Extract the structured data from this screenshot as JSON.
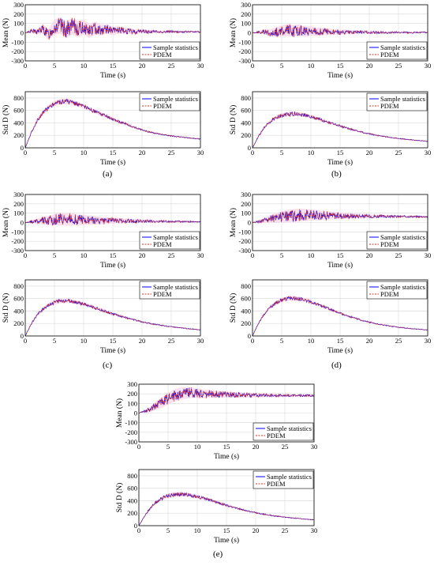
{
  "panels": [
    {
      "label": "(a)"
    },
    {
      "label": "(b)"
    },
    {
      "label": "(c)"
    },
    {
      "label": "(d)"
    },
    {
      "label": "(e)"
    }
  ],
  "chart_data": [
    {
      "panel": "(a)",
      "type": "line",
      "xlabel": "Time (s)",
      "ylabel": "Mean (N)",
      "xlim": [
        0,
        30
      ],
      "ylim": [
        -300,
        300
      ],
      "xticks": [
        0,
        5,
        10,
        15,
        20,
        25,
        30
      ],
      "yticks": [
        -300,
        -200,
        -100,
        0,
        100,
        200,
        300
      ],
      "grid": true,
      "legend": "bottom-right",
      "series": [
        {
          "name": "Sample statistics",
          "color": "#0000ff"
        },
        {
          "name": "PDEM",
          "color": "#e0301e",
          "dash": true
        }
      ],
      "x": [
        0,
        1,
        2,
        3,
        4,
        5,
        6,
        7,
        8,
        9,
        10,
        11,
        12,
        13,
        14,
        15,
        16,
        17,
        18,
        19,
        20,
        21,
        22,
        23,
        24,
        25,
        26,
        27,
        28,
        29,
        30
      ],
      "values": [
        0,
        20,
        10,
        40,
        -20,
        60,
        80,
        30,
        70,
        40,
        60,
        20,
        50,
        30,
        40,
        20,
        30,
        20,
        15,
        10,
        20,
        10,
        15,
        10,
        10,
        15,
        10,
        10,
        12,
        10,
        10
      ],
      "amplitude": [
        0,
        20,
        30,
        50,
        60,
        80,
        90,
        90,
        90,
        85,
        80,
        75,
        70,
        60,
        50,
        45,
        40,
        35,
        30,
        25,
        20,
        18,
        15,
        14,
        12,
        12,
        10,
        10,
        10,
        10,
        10
      ]
    },
    {
      "panel": "(a)",
      "type": "line",
      "xlabel": "Time (s)",
      "ylabel": "Std D (N)",
      "xlim": [
        0,
        30
      ],
      "ylim": [
        0,
        900
      ],
      "xticks": [
        0,
        5,
        10,
        15,
        20,
        25,
        30
      ],
      "yticks": [
        0,
        200,
        400,
        600,
        800
      ],
      "grid": true,
      "legend": "top-right",
      "series": [
        {
          "name": "Sample statistics",
          "color": "#0000ff"
        },
        {
          "name": "PDEM",
          "color": "#e0301e",
          "dash": true
        }
      ],
      "x": [
        0,
        1,
        2,
        3,
        4,
        5,
        6,
        7,
        8,
        9,
        10,
        11,
        12,
        13,
        14,
        15,
        16,
        17,
        18,
        19,
        20,
        21,
        22,
        23,
        24,
        25,
        26,
        27,
        28,
        29,
        30
      ],
      "values": [
        0,
        240,
        430,
        560,
        650,
        710,
        740,
        745,
        730,
        700,
        660,
        620,
        580,
        540,
        500,
        460,
        420,
        390,
        350,
        320,
        290,
        260,
        240,
        220,
        205,
        190,
        180,
        170,
        160,
        150,
        140
      ],
      "amplitude": [
        0,
        15,
        25,
        35,
        40,
        45,
        45,
        45,
        40,
        40,
        35,
        35,
        30,
        30,
        25,
        25,
        20,
        20,
        15,
        15,
        15,
        12,
        12,
        10,
        10,
        10,
        8,
        8,
        8,
        8,
        8
      ]
    },
    {
      "panel": "(b)",
      "type": "line",
      "xlabel": "Time (s)",
      "ylabel": "Mean (N)",
      "xlim": [
        0,
        30
      ],
      "ylim": [
        -300,
        300
      ],
      "xticks": [
        0,
        5,
        10,
        15,
        20,
        25,
        30
      ],
      "yticks": [
        -300,
        -200,
        -100,
        0,
        100,
        200,
        300
      ],
      "grid": true,
      "legend": "bottom-right",
      "series": [
        {
          "name": "Sample statistics",
          "color": "#0000ff"
        },
        {
          "name": "PDEM",
          "color": "#e0301e",
          "dash": true
        }
      ],
      "x": [
        0,
        1,
        2,
        3,
        4,
        5,
        6,
        7,
        8,
        9,
        10,
        11,
        12,
        13,
        14,
        15,
        16,
        17,
        18,
        19,
        20,
        21,
        22,
        23,
        24,
        25,
        26,
        27,
        28,
        29,
        30
      ],
      "values": [
        0,
        5,
        10,
        0,
        10,
        20,
        30,
        20,
        30,
        10,
        20,
        10,
        15,
        10,
        10,
        5,
        10,
        5,
        5,
        10,
        5,
        5,
        5,
        0,
        5,
        5,
        5,
        0,
        5,
        5,
        5
      ],
      "amplitude": [
        0,
        15,
        25,
        40,
        50,
        60,
        65,
        65,
        60,
        55,
        50,
        45,
        40,
        35,
        30,
        28,
        25,
        22,
        20,
        18,
        16,
        14,
        12,
        12,
        10,
        10,
        10,
        8,
        8,
        8,
        8
      ]
    },
    {
      "panel": "(b)",
      "type": "line",
      "xlabel": "Time (s)",
      "ylabel": "Std D (N)",
      "xlim": [
        0,
        30
      ],
      "ylim": [
        0,
        900
      ],
      "xticks": [
        0,
        5,
        10,
        15,
        20,
        25,
        30
      ],
      "yticks": [
        0,
        200,
        400,
        600,
        800
      ],
      "grid": true,
      "legend": "top-right",
      "series": [
        {
          "name": "Sample statistics",
          "color": "#0000ff"
        },
        {
          "name": "PDEM",
          "color": "#e0301e",
          "dash": true
        }
      ],
      "x": [
        0,
        1,
        2,
        3,
        4,
        5,
        6,
        7,
        8,
        9,
        10,
        11,
        12,
        13,
        14,
        15,
        16,
        17,
        18,
        19,
        20,
        21,
        22,
        23,
        24,
        25,
        26,
        27,
        28,
        29,
        30
      ],
      "values": [
        0,
        180,
        320,
        420,
        480,
        520,
        540,
        545,
        540,
        520,
        500,
        470,
        440,
        410,
        380,
        350,
        320,
        295,
        270,
        245,
        225,
        205,
        190,
        175,
        160,
        150,
        140,
        130,
        120,
        112,
        105
      ],
      "amplitude": [
        0,
        12,
        20,
        28,
        32,
        35,
        35,
        35,
        32,
        30,
        28,
        26,
        24,
        22,
        20,
        18,
        16,
        15,
        14,
        12,
        12,
        10,
        10,
        10,
        8,
        8,
        8,
        8,
        6,
        6,
        6
      ]
    },
    {
      "panel": "(c)",
      "type": "line",
      "xlabel": "Time (s)",
      "ylabel": "Mean (N)",
      "xlim": [
        0,
        30
      ],
      "ylim": [
        -300,
        300
      ],
      "xticks": [
        0,
        5,
        10,
        15,
        20,
        25,
        30
      ],
      "yticks": [
        -300,
        -200,
        -100,
        0,
        100,
        200,
        300
      ],
      "grid": true,
      "legend": "bottom-right",
      "series": [
        {
          "name": "Sample statistics",
          "color": "#0000ff"
        },
        {
          "name": "PDEM",
          "color": "#e0301e",
          "dash": true
        }
      ],
      "x": [
        0,
        1,
        2,
        3,
        4,
        5,
        6,
        7,
        8,
        9,
        10,
        11,
        12,
        13,
        14,
        15,
        16,
        17,
        18,
        19,
        20,
        21,
        22,
        23,
        24,
        25,
        26,
        27,
        28,
        29,
        30
      ],
      "values": [
        0,
        10,
        15,
        20,
        20,
        30,
        35,
        30,
        35,
        25,
        30,
        25,
        25,
        20,
        20,
        20,
        20,
        18,
        18,
        15,
        15,
        15,
        12,
        12,
        12,
        10,
        10,
        10,
        10,
        10,
        10
      ],
      "amplitude": [
        0,
        15,
        25,
        40,
        50,
        60,
        65,
        65,
        65,
        60,
        55,
        50,
        45,
        40,
        35,
        32,
        28,
        25,
        22,
        20,
        18,
        16,
        14,
        12,
        12,
        10,
        10,
        10,
        8,
        8,
        8
      ]
    },
    {
      "panel": "(c)",
      "type": "line",
      "xlabel": "Time (s)",
      "ylabel": "Std D (N)",
      "xlim": [
        0,
        30
      ],
      "ylim": [
        0,
        900
      ],
      "xticks": [
        0,
        5,
        10,
        15,
        20,
        25,
        30
      ],
      "yticks": [
        0,
        200,
        400,
        600,
        800
      ],
      "grid": true,
      "legend": "top-right",
      "series": [
        {
          "name": "Sample statistics",
          "color": "#0000ff"
        },
        {
          "name": "PDEM",
          "color": "#e0301e",
          "dash": true
        }
      ],
      "x": [
        0,
        1,
        2,
        3,
        4,
        5,
        6,
        7,
        8,
        9,
        10,
        11,
        12,
        13,
        14,
        15,
        16,
        17,
        18,
        19,
        20,
        21,
        22,
        23,
        24,
        25,
        26,
        27,
        28,
        29,
        30
      ],
      "values": [
        0,
        190,
        330,
        430,
        500,
        540,
        560,
        565,
        555,
        535,
        510,
        480,
        450,
        420,
        385,
        355,
        325,
        300,
        275,
        250,
        228,
        208,
        190,
        175,
        160,
        148,
        136,
        125,
        115,
        108,
        100
      ],
      "amplitude": [
        0,
        12,
        20,
        28,
        32,
        35,
        35,
        35,
        32,
        30,
        28,
        26,
        24,
        22,
        20,
        18,
        16,
        15,
        14,
        12,
        12,
        10,
        10,
        10,
        8,
        8,
        8,
        8,
        6,
        6,
        6
      ]
    },
    {
      "panel": "(d)",
      "type": "line",
      "xlabel": "Time (s)",
      "ylabel": "Mean (N)",
      "xlim": [
        0,
        30
      ],
      "ylim": [
        -300,
        300
      ],
      "xticks": [
        0,
        5,
        10,
        15,
        20,
        25,
        30
      ],
      "yticks": [
        -300,
        -200,
        -100,
        0,
        100,
        200,
        300
      ],
      "grid": true,
      "legend": "bottom-right",
      "series": [
        {
          "name": "Sample statistics",
          "color": "#0000ff"
        },
        {
          "name": "PDEM",
          "color": "#e0301e",
          "dash": true
        }
      ],
      "x": [
        0,
        1,
        2,
        3,
        4,
        5,
        6,
        7,
        8,
        9,
        10,
        11,
        12,
        13,
        14,
        15,
        16,
        17,
        18,
        19,
        20,
        21,
        22,
        23,
        24,
        25,
        26,
        27,
        28,
        29,
        30
      ],
      "values": [
        0,
        10,
        25,
        40,
        50,
        60,
        70,
        75,
        80,
        80,
        80,
        80,
        78,
        76,
        74,
        72,
        70,
        70,
        70,
        68,
        68,
        66,
        66,
        65,
        65,
        64,
        64,
        64,
        63,
        63,
        62
      ],
      "amplitude": [
        0,
        15,
        25,
        40,
        50,
        60,
        65,
        70,
        70,
        65,
        60,
        55,
        50,
        45,
        40,
        35,
        30,
        28,
        25,
        22,
        20,
        18,
        16,
        15,
        14,
        12,
        12,
        10,
        10,
        10,
        10
      ]
    },
    {
      "panel": "(d)",
      "type": "line",
      "xlabel": "Time (s)",
      "ylabel": "Std D (N)",
      "xlim": [
        0,
        30
      ],
      "ylim": [
        0,
        900
      ],
      "xticks": [
        0,
        5,
        10,
        15,
        20,
        25,
        30
      ],
      "yticks": [
        0,
        200,
        400,
        600,
        800
      ],
      "grid": true,
      "legend": "top-right",
      "series": [
        {
          "name": "Sample statistics",
          "color": "#0000ff"
        },
        {
          "name": "PDEM",
          "color": "#e0301e",
          "dash": true
        }
      ],
      "x": [
        0,
        1,
        2,
        3,
        4,
        5,
        6,
        7,
        8,
        9,
        10,
        11,
        12,
        13,
        14,
        15,
        16,
        17,
        18,
        19,
        20,
        21,
        22,
        23,
        24,
        25,
        26,
        27,
        28,
        29,
        30
      ],
      "values": [
        0,
        200,
        350,
        460,
        530,
        575,
        600,
        605,
        595,
        575,
        545,
        510,
        475,
        440,
        400,
        365,
        330,
        300,
        272,
        246,
        222,
        200,
        182,
        166,
        152,
        140,
        130,
        120,
        112,
        105,
        98
      ],
      "amplitude": [
        0,
        12,
        20,
        28,
        32,
        35,
        35,
        35,
        32,
        30,
        28,
        26,
        24,
        22,
        20,
        18,
        16,
        15,
        14,
        12,
        12,
        10,
        10,
        10,
        8,
        8,
        8,
        8,
        6,
        6,
        6
      ]
    },
    {
      "panel": "(e)",
      "type": "line",
      "xlabel": "Time (s)",
      "ylabel": "Mean (N)",
      "xlim": [
        0,
        30
      ],
      "ylim": [
        -300,
        300
      ],
      "xticks": [
        0,
        5,
        10,
        15,
        20,
        25,
        30
      ],
      "yticks": [
        -300,
        -200,
        -100,
        0,
        100,
        200,
        300
      ],
      "grid": true,
      "legend": "bottom-right",
      "series": [
        {
          "name": "Sample statistics",
          "color": "#0000ff"
        },
        {
          "name": "PDEM",
          "color": "#e0301e",
          "dash": true
        }
      ],
      "x": [
        0,
        1,
        2,
        3,
        4,
        5,
        6,
        7,
        8,
        9,
        10,
        11,
        12,
        13,
        14,
        15,
        16,
        17,
        18,
        19,
        20,
        21,
        22,
        23,
        24,
        25,
        26,
        27,
        28,
        29,
        30
      ],
      "values": [
        0,
        20,
        40,
        80,
        110,
        150,
        180,
        200,
        210,
        210,
        205,
        200,
        198,
        196,
        194,
        192,
        190,
        190,
        188,
        187,
        186,
        185,
        185,
        184,
        184,
        183,
        183,
        182,
        182,
        182,
        182
      ],
      "amplitude": [
        0,
        15,
        30,
        45,
        55,
        60,
        65,
        65,
        60,
        55,
        50,
        45,
        40,
        38,
        35,
        32,
        30,
        28,
        26,
        24,
        22,
        20,
        18,
        16,
        15,
        14,
        13,
        12,
        12,
        12,
        12
      ]
    },
    {
      "panel": "(e)",
      "type": "line",
      "xlabel": "Time (s)",
      "ylabel": "Std D (N)",
      "xlim": [
        0,
        30
      ],
      "ylim": [
        0,
        900
      ],
      "xticks": [
        0,
        5,
        10,
        15,
        20,
        25,
        30
      ],
      "yticks": [
        0,
        200,
        400,
        600,
        800
      ],
      "grid": true,
      "legend": "top-right",
      "series": [
        {
          "name": "Sample statistics",
          "color": "#0000ff"
        },
        {
          "name": "PDEM",
          "color": "#e0301e",
          "dash": true
        }
      ],
      "x": [
        0,
        1,
        2,
        3,
        4,
        5,
        6,
        7,
        8,
        9,
        10,
        11,
        12,
        13,
        14,
        15,
        16,
        17,
        18,
        19,
        20,
        21,
        22,
        23,
        24,
        25,
        26,
        27,
        28,
        29,
        30
      ],
      "values": [
        0,
        160,
        290,
        380,
        440,
        480,
        500,
        505,
        500,
        485,
        465,
        440,
        415,
        385,
        355,
        325,
        300,
        275,
        250,
        228,
        208,
        190,
        175,
        160,
        148,
        137,
        127,
        118,
        110,
        102,
        95
      ],
      "amplitude": [
        0,
        12,
        20,
        28,
        32,
        35,
        35,
        35,
        32,
        30,
        28,
        26,
        24,
        22,
        20,
        18,
        16,
        15,
        14,
        12,
        12,
        10,
        10,
        10,
        8,
        8,
        8,
        8,
        6,
        6,
        6
      ]
    }
  ]
}
